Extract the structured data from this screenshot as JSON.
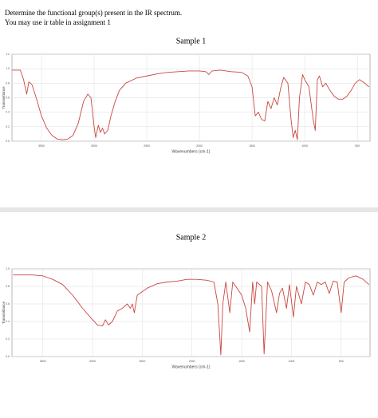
{
  "instructions": [
    "Determine the functional group(s) present in the IR spectrum.",
    "You may use ir table in assignment 1"
  ],
  "chart_data": [
    {
      "type": "line",
      "title": "Sample 1",
      "xlabel": "Wavenumbers (cm-1)",
      "ylabel": "Transmittance",
      "x": [
        3780,
        3700,
        3670,
        3640,
        3620,
        3590,
        3550,
        3500,
        3450,
        3400,
        3350,
        3300,
        3250,
        3200,
        3150,
        3100,
        3060,
        3030,
        3000,
        2985,
        2960,
        2940,
        2920,
        2900,
        2870,
        2840,
        2800,
        2760,
        2700,
        2600,
        2500,
        2400,
        2300,
        2200,
        2100,
        2000,
        1940,
        1910,
        1880,
        1800,
        1700,
        1600,
        1540,
        1500,
        1470,
        1440,
        1410,
        1380,
        1350,
        1320,
        1290,
        1260,
        1230,
        1200,
        1160,
        1130,
        1110,
        1090,
        1070,
        1050,
        1020,
        1000,
        960,
        920,
        900,
        880,
        860,
        830,
        800,
        760,
        720,
        680,
        640,
        600,
        560,
        520,
        480,
        430,
        390
      ],
      "series": [
        {
          "name": "Sample 1",
          "color": "#c9463f",
          "values": [
            0.98,
            0.98,
            0.85,
            0.65,
            0.82,
            0.78,
            0.6,
            0.35,
            0.18,
            0.08,
            0.03,
            0.02,
            0.03,
            0.08,
            0.25,
            0.55,
            0.65,
            0.6,
            0.2,
            0.05,
            0.22,
            0.12,
            0.18,
            0.1,
            0.15,
            0.35,
            0.55,
            0.7,
            0.8,
            0.87,
            0.9,
            0.93,
            0.95,
            0.96,
            0.97,
            0.97,
            0.96,
            0.92,
            0.97,
            0.98,
            0.96,
            0.95,
            0.9,
            0.75,
            0.35,
            0.4,
            0.3,
            0.28,
            0.55,
            0.45,
            0.6,
            0.5,
            0.72,
            0.88,
            0.8,
            0.3,
            0.05,
            0.15,
            0.02,
            0.6,
            0.92,
            0.85,
            0.75,
            0.3,
            0.15,
            0.85,
            0.9,
            0.75,
            0.8,
            0.7,
            0.62,
            0.58,
            0.58,
            0.62,
            0.7,
            0.8,
            0.85,
            0.8,
            0.75
          ]
        }
      ],
      "xlim": [
        3780,
        380
      ],
      "xticks": [
        3500,
        3000,
        2500,
        2000,
        1500,
        1000,
        500
      ],
      "ylim": [
        0,
        1.2
      ],
      "yticks": [
        {
          "value": 0,
          "label": "0.0"
        },
        {
          "value": 0.2,
          "label": "0.2"
        },
        {
          "value": 0.4,
          "label": "0.4"
        },
        {
          "value": 0.6,
          "label": "0.6"
        },
        {
          "value": 0.8,
          "label": "0.8"
        },
        {
          "value": 1,
          "label": "1.0"
        },
        {
          "value": 1.2,
          "label": "1.2"
        }
      ],
      "grid": true
    },
    {
      "type": "line",
      "title": "Sample 2",
      "xlabel": "Wavenumbers (cm-1)",
      "ylabel": "Transmittance",
      "x": [
        3800,
        3700,
        3600,
        3500,
        3450,
        3400,
        3300,
        3200,
        3100,
        3000,
        2950,
        2900,
        2870,
        2840,
        2800,
        2750,
        2700,
        2650,
        2620,
        2600,
        2580,
        2550,
        2450,
        2350,
        2250,
        2150,
        2050,
        1950,
        1850,
        1780,
        1740,
        1710,
        1690,
        1660,
        1620,
        1590,
        1500,
        1460,
        1420,
        1390,
        1370,
        1350,
        1300,
        1275,
        1240,
        1200,
        1150,
        1120,
        1090,
        1050,
        1020,
        980,
        950,
        900,
        860,
        820,
        780,
        740,
        700,
        660,
        620,
        580,
        540,
        500,
        470,
        420,
        350,
        280,
        220
      ],
      "series": [
        {
          "name": "Sample 2",
          "color": "#c9463f",
          "values": [
            0.93,
            0.93,
            0.93,
            0.92,
            0.9,
            0.88,
            0.82,
            0.7,
            0.55,
            0.42,
            0.36,
            0.35,
            0.42,
            0.36,
            0.4,
            0.52,
            0.55,
            0.6,
            0.55,
            0.6,
            0.5,
            0.7,
            0.78,
            0.83,
            0.85,
            0.86,
            0.88,
            0.88,
            0.87,
            0.85,
            0.6,
            0.02,
            0.6,
            0.85,
            0.5,
            0.85,
            0.7,
            0.55,
            0.28,
            0.85,
            0.6,
            0.85,
            0.8,
            0.03,
            0.85,
            0.75,
            0.5,
            0.72,
            0.78,
            0.55,
            0.82,
            0.45,
            0.8,
            0.6,
            0.85,
            0.82,
            0.7,
            0.85,
            0.82,
            0.85,
            0.72,
            0.86,
            0.85,
            0.5,
            0.85,
            0.9,
            0.92,
            0.88,
            0.82
          ]
        }
      ],
      "xlim": [
        3810,
        210
      ],
      "xticks": [
        3500,
        3000,
        2500,
        2000,
        1500,
        1000,
        500
      ],
      "ylim": [
        0,
        1
      ],
      "yticks": [
        {
          "value": 0,
          "label": "0.0"
        },
        {
          "value": 0.2,
          "label": "0.2"
        },
        {
          "value": 0.4,
          "label": "0.4"
        },
        {
          "value": 0.6,
          "label": "0.6"
        },
        {
          "value": 0.8,
          "label": "0.8"
        },
        {
          "value": 1,
          "label": "1.0"
        }
      ],
      "grid": true
    }
  ]
}
